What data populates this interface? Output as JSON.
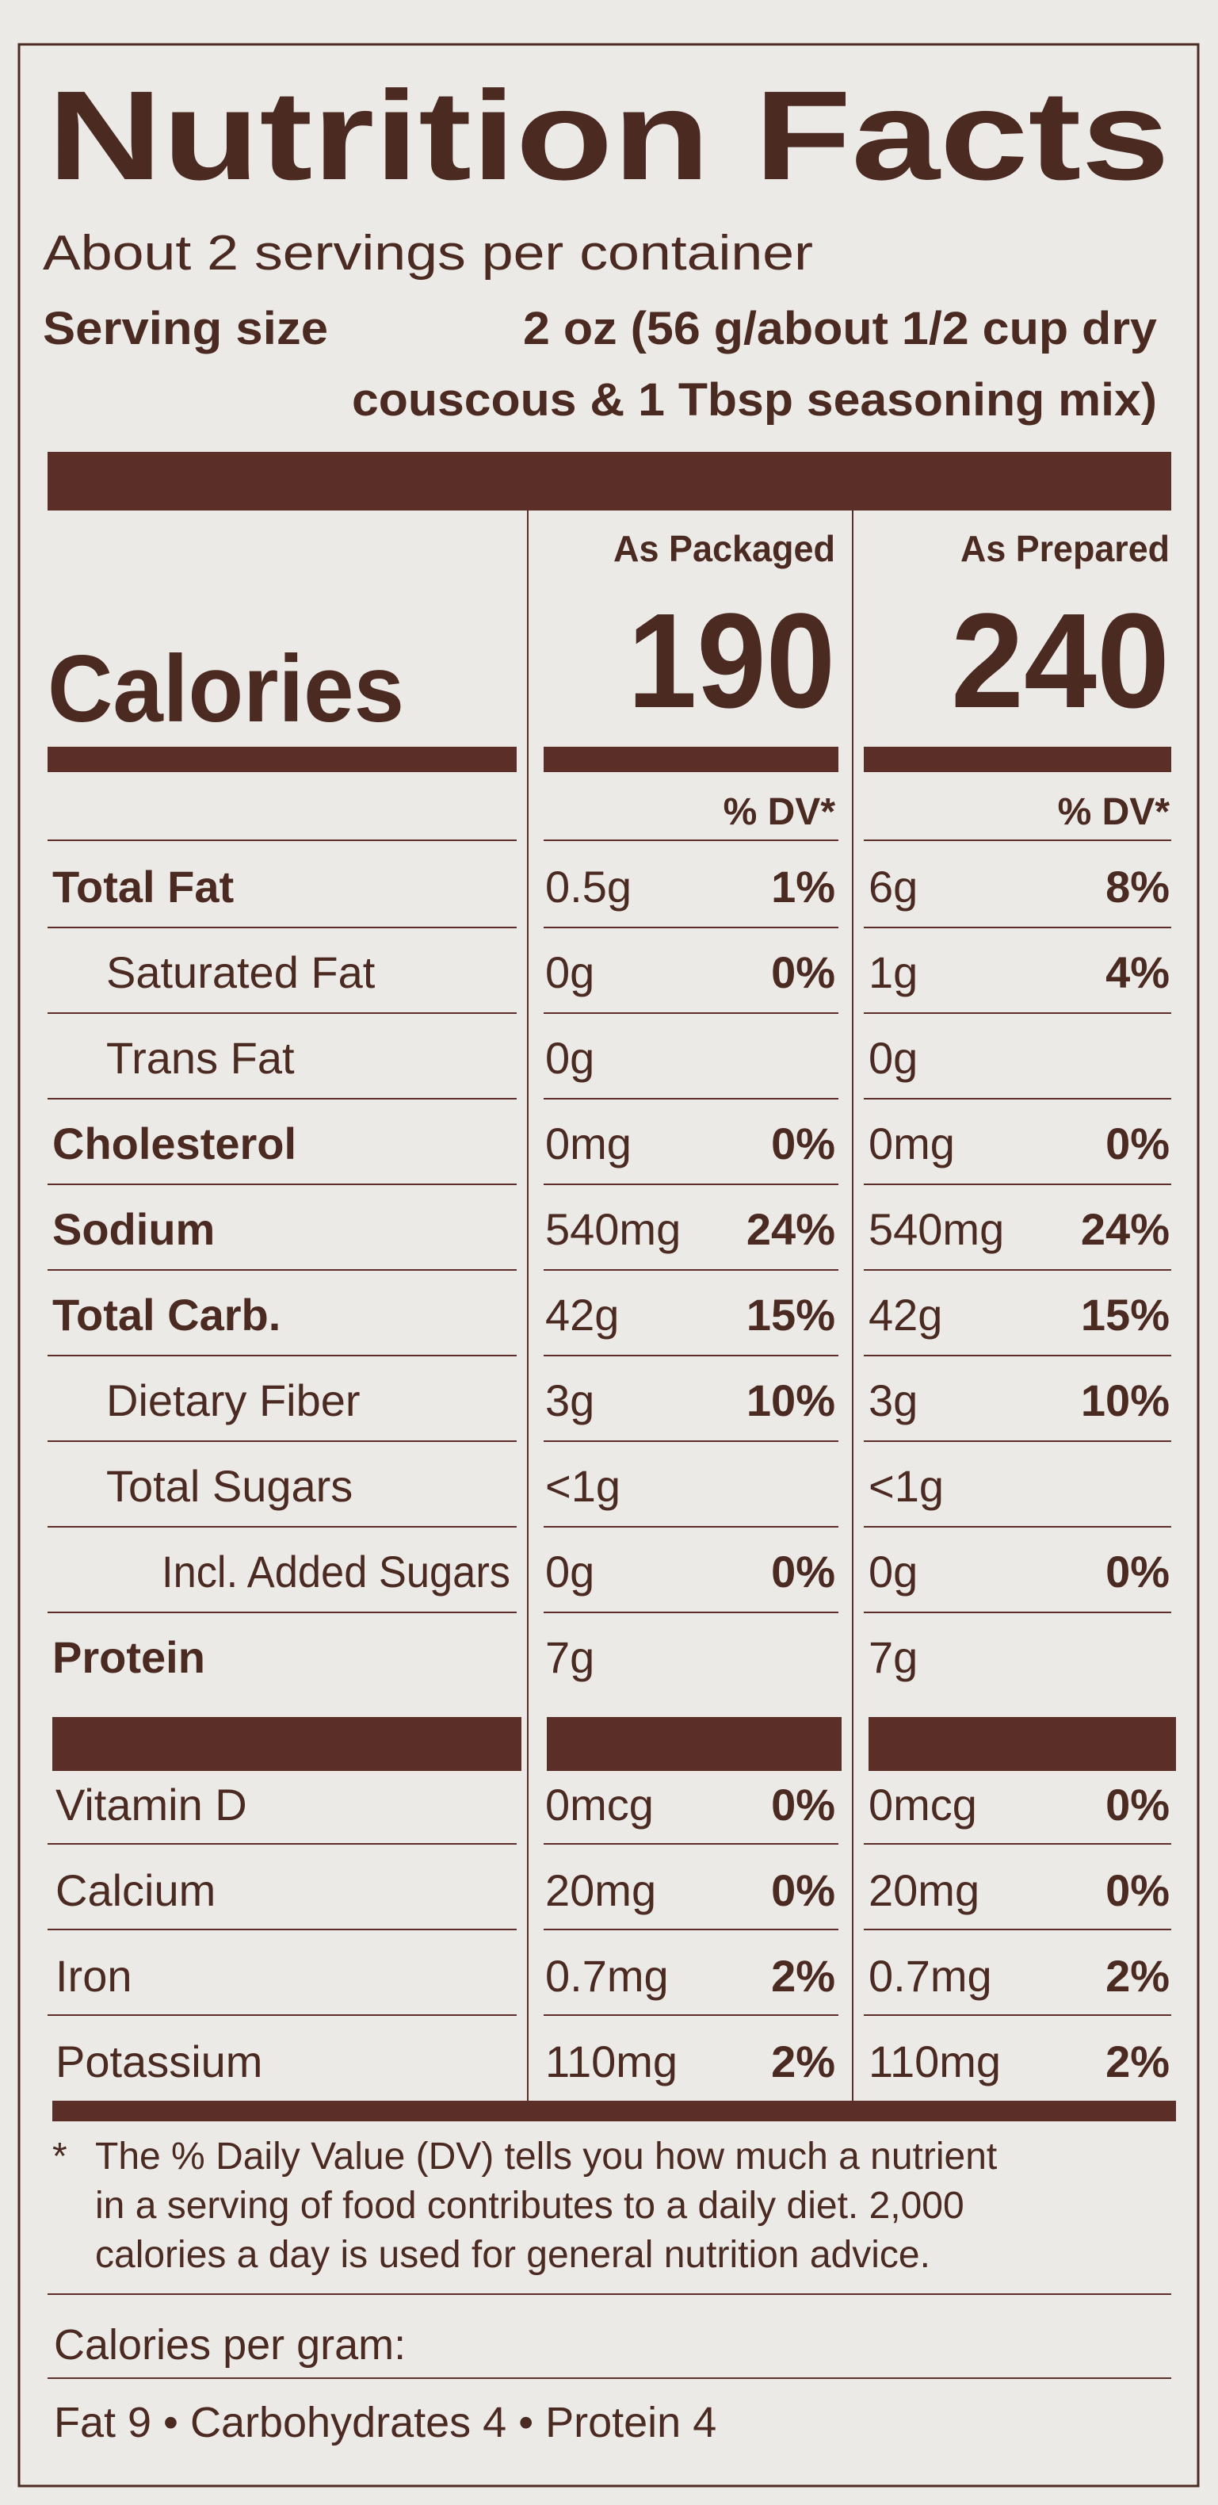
{
  "title": "Nutrition Facts",
  "servings": "About 2 servings per container",
  "serving_size": {
    "label": "Serving size",
    "value_lines": [
      "2 oz (56 g/about 1/2 cup dry",
      "couscous & 1 Tbsp seasoning mix)"
    ]
  },
  "calories": {
    "label": "Calories",
    "columns": [
      {
        "header": "As Packaged",
        "value": "190"
      },
      {
        "header": "As Prepared",
        "value": "240"
      }
    ]
  },
  "dv_header": "% DV*",
  "nutrients": [
    {
      "name": "Total Fat",
      "level": 0,
      "packaged": {
        "amount": "0.5g",
        "dv": "1%"
      },
      "prepared": {
        "amount": "6g",
        "dv": "8%"
      }
    },
    {
      "name": "Saturated Fat",
      "level": 1,
      "packaged": {
        "amount": "0g",
        "dv": "0%"
      },
      "prepared": {
        "amount": "1g",
        "dv": "4%"
      }
    },
    {
      "name": "Trans Fat",
      "level": 1,
      "packaged": {
        "amount": "0g"
      },
      "prepared": {
        "amount": "0g"
      }
    },
    {
      "name": "Cholesterol",
      "level": 0,
      "packaged": {
        "amount": "0mg",
        "dv": "0%"
      },
      "prepared": {
        "amount": "0mg",
        "dv": "0%"
      }
    },
    {
      "name": "Sodium",
      "level": 0,
      "packaged": {
        "amount": "540mg",
        "dv": "24%"
      },
      "prepared": {
        "amount": "540mg",
        "dv": "24%"
      }
    },
    {
      "name": "Total Carb.",
      "level": 0,
      "packaged": {
        "amount": "42g",
        "dv": "15%"
      },
      "prepared": {
        "amount": "42g",
        "dv": "15%"
      }
    },
    {
      "name": "Dietary Fiber",
      "level": 1,
      "packaged": {
        "amount": "3g",
        "dv": "10%"
      },
      "prepared": {
        "amount": "3g",
        "dv": "10%"
      }
    },
    {
      "name": "Total Sugars",
      "level": 1,
      "packaged": {
        "amount": "<1g"
      },
      "prepared": {
        "amount": "<1g"
      }
    },
    {
      "name": "Incl. Added Sugars",
      "level": 2,
      "packaged": {
        "amount": "0g",
        "dv": "0%"
      },
      "prepared": {
        "amount": "0g",
        "dv": "0%"
      }
    },
    {
      "name": "Protein",
      "level": 0,
      "packaged": {
        "amount": "7g"
      },
      "prepared": {
        "amount": "7g"
      }
    }
  ],
  "vitamins": [
    {
      "name": "Vitamin D",
      "packaged": {
        "amount": "0mcg",
        "dv": "0%"
      },
      "prepared": {
        "amount": "0mcg",
        "dv": "0%"
      }
    },
    {
      "name": "Calcium",
      "packaged": {
        "amount": "20mg",
        "dv": "0%"
      },
      "prepared": {
        "amount": "20mg",
        "dv": "0%"
      }
    },
    {
      "name": "Iron",
      "packaged": {
        "amount": "0.7mg",
        "dv": "2%"
      },
      "prepared": {
        "amount": "0.7mg",
        "dv": "2%"
      }
    },
    {
      "name": "Potassium",
      "packaged": {
        "amount": "110mg",
        "dv": "2%"
      },
      "prepared": {
        "amount": "110mg",
        "dv": "2%"
      }
    }
  ],
  "footnote": {
    "mark": "*",
    "lines": [
      "The % Daily Value (DV) tells you how much a nutrient",
      "in a serving of food contributes to a daily diet. 2,000",
      "calories a day is used for general nutrition advice."
    ]
  },
  "calories_per_gram": {
    "label": "Calories per gram:",
    "text": "Fat 9 • Carbohydrates 4 • Protein 4"
  }
}
